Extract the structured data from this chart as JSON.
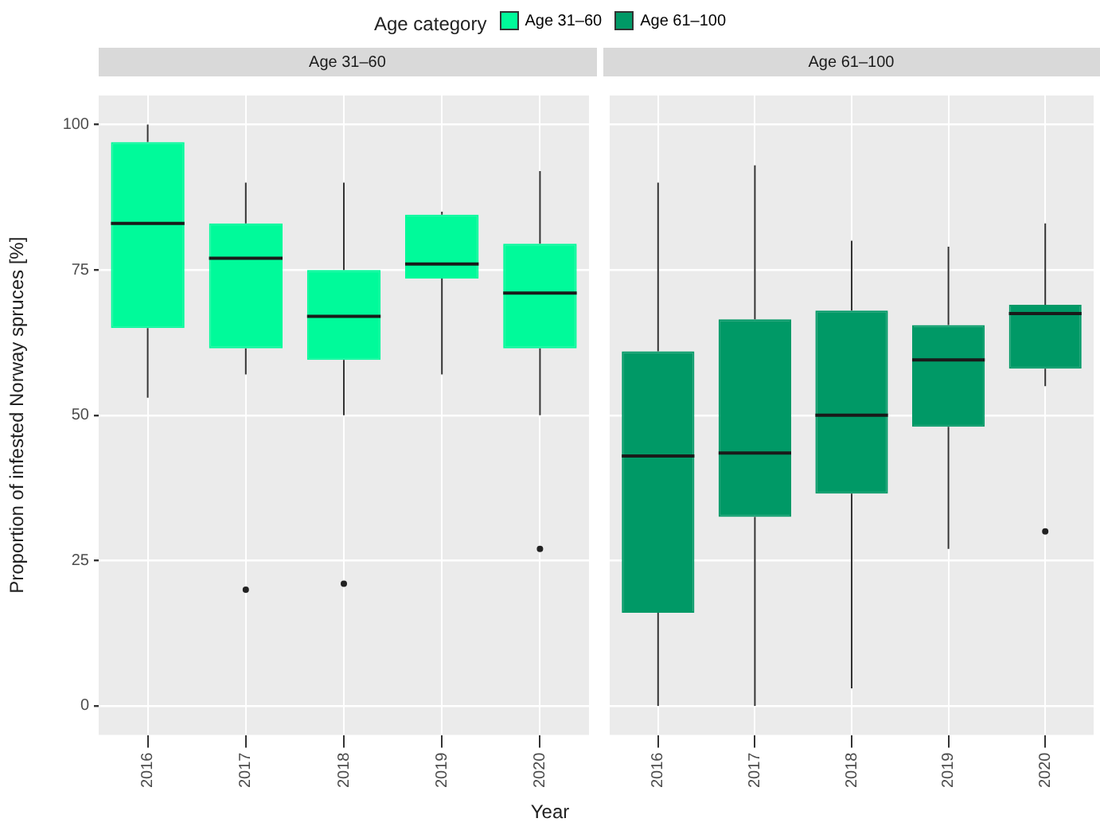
{
  "chart_data": [
    {
      "type": "box",
      "title": "Age 31–60",
      "ylabel": "Proportion of infested Norway spruces [%]",
      "xlabel": "Year",
      "legend_title": "Age category",
      "legend": "top",
      "grid": true,
      "categories": [
        "2016",
        "2017",
        "2018",
        "2019",
        "2020"
      ],
      "ylim": [
        -5,
        105
      ],
      "yticks": [
        0,
        25,
        50,
        75,
        100
      ],
      "series": [
        {
          "name": "Age 31–60",
          "color": "#00fa9a",
          "boxes": [
            {
              "low": 53,
              "q1": 65,
              "median": 83,
              "q3": 97,
              "high": 100
            },
            {
              "low": 57,
              "q1": 61.5,
              "median": 77,
              "q3": 83,
              "high": 90,
              "outliers": [
                20
              ]
            },
            {
              "low": 50,
              "q1": 59.5,
              "median": 67,
              "q3": 75,
              "high": 90,
              "outliers": [
                21
              ]
            },
            {
              "low": 57,
              "q1": 73.5,
              "median": 76,
              "q3": 84.5,
              "high": 85
            },
            {
              "low": 50,
              "q1": 61.5,
              "median": 71,
              "q3": 79.5,
              "high": 92,
              "outliers": [
                27
              ]
            }
          ]
        }
      ]
    },
    {
      "type": "box",
      "title": "Age 61–100",
      "legend": "top",
      "grid": true,
      "tick_labels": "x",
      "categories": [
        "2016",
        "2017",
        "2018",
        "2019",
        "2020"
      ],
      "ylim": [
        -5,
        105
      ],
      "yticks": [
        0,
        25,
        50,
        75,
        100
      ],
      "series": [
        {
          "name": "Age 61–100",
          "color": "#009966",
          "boxes": [
            {
              "low": 0,
              "q1": 16,
              "median": 43,
              "q3": 61,
              "high": 90
            },
            {
              "low": 0,
              "q1": 32.5,
              "median": 43.5,
              "q3": 66.5,
              "high": 93
            },
            {
              "low": 3,
              "q1": 36.5,
              "median": 50,
              "q3": 68,
              "high": 80
            },
            {
              "low": 27,
              "q1": 48,
              "median": 59.5,
              "q3": 65.5,
              "high": 79
            },
            {
              "low": 55,
              "q1": 58,
              "median": 67.5,
              "q3": 69,
              "high": 83,
              "outliers": [
                30
              ]
            }
          ]
        }
      ]
    }
  ]
}
